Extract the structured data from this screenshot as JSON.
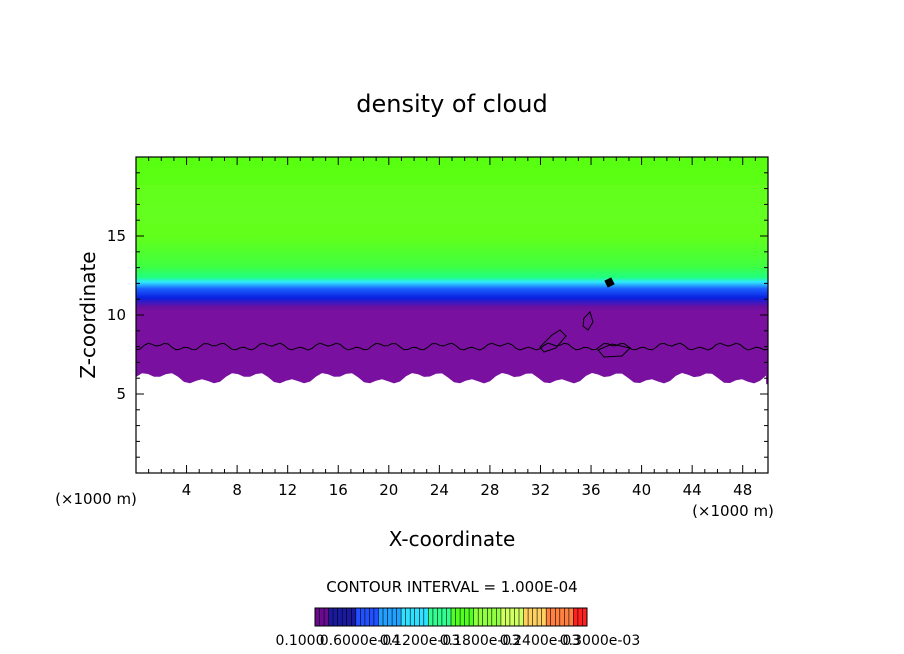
{
  "chart_data": {
    "type": "heatmap",
    "title": "density of cloud",
    "xlabel": "X-coordinate",
    "ylabel": "Z-coordinate",
    "x_unit_label": "(×1000 m)",
    "z_unit_label": "(×1000 m)",
    "xlim": [
      0,
      50
    ],
    "ylim": [
      0,
      20
    ],
    "xticks": [
      4,
      8,
      12,
      16,
      20,
      24,
      28,
      32,
      36,
      40,
      44,
      48
    ],
    "yticks": [
      5,
      10,
      15
    ],
    "contour_interval_text": "CONTOUR INTERVAL = 1.000E-04",
    "colorbar": {
      "tick_labels": [
        "0.1000",
        "0.6000e-04",
        "0.1200e-03",
        "0.1800e-03",
        "0.2400e-03",
        "0.3000e-03"
      ],
      "colors": [
        "#6a0a8f",
        "#1a1aa0",
        "#2050ff",
        "#20a0ff",
        "#30e0ff",
        "#30ff90",
        "#50ff20",
        "#90ff40",
        "#d0ff60",
        "#ffd060",
        "#ff8040",
        "#ff2020"
      ]
    },
    "field_description": {
      "cloud_base_z": 6.0,
      "cloud_layer_boundary_z": 8.0,
      "cloud_top_z": 20.0
    },
    "colors": {
      "upper_field": "#60ff10",
      "mid_field": "#20ff70",
      "cyan_band": "#30e8ff",
      "blue_band": "#1030ff",
      "purple_base": "#7a10a0",
      "contour_line": "#000000"
    }
  }
}
